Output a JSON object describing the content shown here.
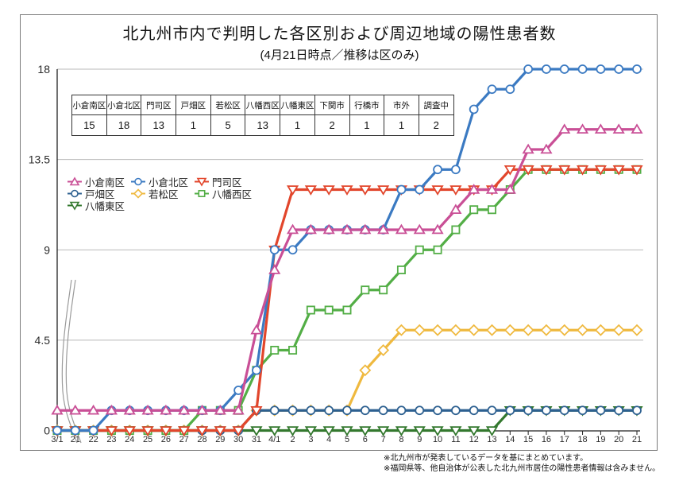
{
  "title": {
    "main": "北九州市内で判明した各区別および周辺地域の陽性患者数",
    "subtitle": "(4月21日時点／推移は区のみ)"
  },
  "summary_table": {
    "columns": [
      "小倉南区",
      "小倉北区",
      "門司区",
      "戸畑区",
      "若松区",
      "八幡西区",
      "八幡東区",
      "下関市",
      "行橋市",
      "市外",
      "調査中"
    ],
    "values": [
      "15",
      "18",
      "13",
      "1",
      "5",
      "13",
      "1",
      "2",
      "1",
      "1",
      "2"
    ]
  },
  "footnotes": [
    "※北九州市が発表しているデータを基にまとめています。",
    "※福岡県等、他自治体が公表した北九州市居住の陽性患者情報は含みません。"
  ],
  "chart_data": {
    "type": "line",
    "title": "北九州市内で判明した各区別および周辺地域の陽性患者数",
    "subtitle": "(4月21日時点／推移は区のみ)",
    "x_labels": [
      "3/1",
      "21",
      "22",
      "23",
      "24",
      "25",
      "26",
      "27",
      "28",
      "29",
      "30",
      "31",
      "4/1",
      "2",
      "3",
      "4",
      "5",
      "6",
      "7",
      "8",
      "9",
      "10",
      "11",
      "12",
      "13",
      "14",
      "15",
      "16",
      "17",
      "18",
      "19",
      "20",
      "21"
    ],
    "x_axis_break_between": [
      "3/1",
      "21"
    ],
    "ylim": [
      0,
      18
    ],
    "yticks": [
      0,
      4.5,
      9,
      13.5,
      18
    ],
    "grid": true,
    "legend_position": "upper-left-inside",
    "series": [
      {
        "name": "小倉南区",
        "marker": "triangle-up",
        "color": "#c94f96",
        "values": [
          1,
          1,
          1,
          1,
          1,
          1,
          1,
          1,
          1,
          1,
          1,
          5,
          8,
          10,
          10,
          10,
          10,
          10,
          10,
          10,
          10,
          10,
          11,
          12,
          12,
          12,
          14,
          14,
          15,
          15,
          15,
          15,
          15
        ]
      },
      {
        "name": "小倉北区",
        "marker": "circle",
        "color": "#3b7ac2",
        "values": [
          0,
          0,
          0,
          1,
          1,
          1,
          1,
          1,
          1,
          1,
          2,
          3,
          9,
          9,
          10,
          10,
          10,
          10,
          10,
          12,
          12,
          13,
          13,
          16,
          17,
          17,
          18,
          18,
          18,
          18,
          18,
          18,
          18
        ]
      },
      {
        "name": "門司区",
        "marker": "triangle-down",
        "color": "#e2462c",
        "values": [
          0,
          0,
          0,
          0,
          0,
          0,
          0,
          0,
          0,
          0,
          0,
          1,
          9,
          12,
          12,
          12,
          12,
          12,
          12,
          12,
          12,
          12,
          12,
          12,
          12,
          13,
          13,
          13,
          13,
          13,
          13,
          13,
          13
        ]
      },
      {
        "name": "戸畑区",
        "marker": "circle",
        "color": "#2d6090",
        "values": [
          0,
          0,
          0,
          0,
          0,
          0,
          0,
          0,
          0,
          0,
          0,
          1,
          1,
          1,
          1,
          1,
          1,
          1,
          1,
          1,
          1,
          1,
          1,
          1,
          1,
          1,
          1,
          1,
          1,
          1,
          1,
          1,
          1
        ]
      },
      {
        "name": "若松区",
        "marker": "diamond",
        "color": "#efb93f",
        "values": [
          0,
          0,
          0,
          0,
          0,
          0,
          0,
          0,
          0,
          0,
          0,
          1,
          1,
          1,
          1,
          1,
          1,
          3,
          4,
          5,
          5,
          5,
          5,
          5,
          5,
          5,
          5,
          5,
          5,
          5,
          5,
          5,
          5
        ]
      },
      {
        "name": "八幡西区",
        "marker": "square",
        "color": "#53ae46",
        "values": [
          0,
          0,
          0,
          0,
          0,
          0,
          0,
          0,
          1,
          1,
          1,
          3,
          4,
          4,
          6,
          6,
          6,
          7,
          7,
          8,
          9,
          9,
          10,
          11,
          11,
          12,
          13,
          13,
          13,
          13,
          13,
          13,
          13
        ]
      },
      {
        "name": "八幡東区",
        "marker": "triangle-down",
        "color": "#33782e",
        "values": [
          0,
          0,
          0,
          0,
          0,
          0,
          0,
          0,
          0,
          0,
          0,
          0,
          0,
          0,
          0,
          0,
          0,
          0,
          0,
          0,
          0,
          0,
          0,
          0,
          0,
          1,
          1,
          1,
          1,
          1,
          1,
          1,
          1
        ]
      }
    ],
    "draw_order": [
      4,
      6,
      3,
      5,
      2,
      1,
      0
    ]
  }
}
